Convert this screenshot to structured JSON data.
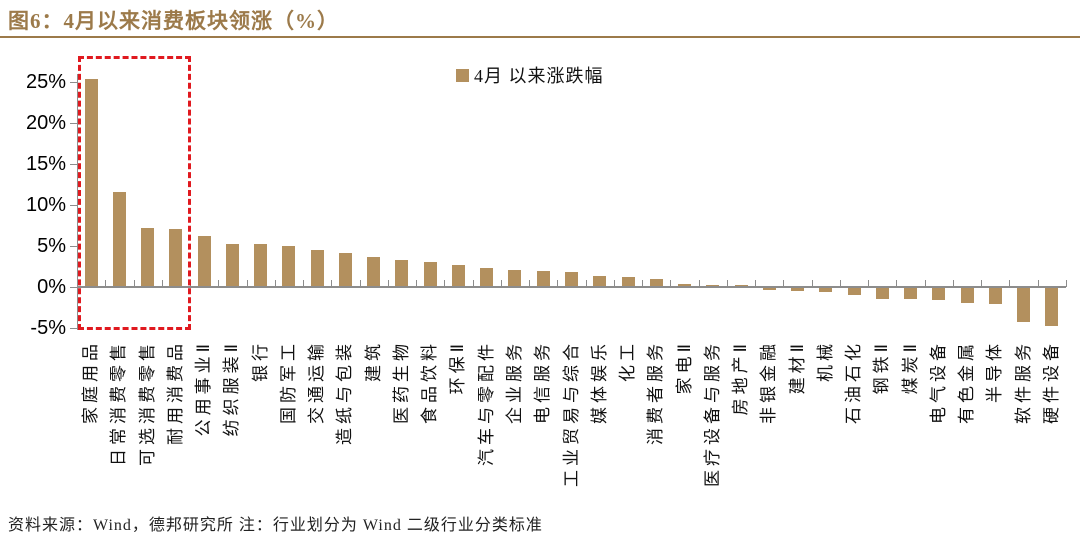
{
  "title": "图6：4月以来消费板块领涨（%）",
  "legend": "4月 以来涨跌幅",
  "footer": "资料来源：Wind，德邦研究所  注：行业划分为 Wind 二级行业分类标准",
  "colors": {
    "accent_brown": "#9c7a4a",
    "bar_fill": "#b3905e",
    "highlight_red": "#e0191f",
    "axis_gray": "#8c8c8c"
  },
  "chart_data": {
    "type": "bar",
    "title": "图6：4月以来消费板块领涨（%）",
    "legend_entries": [
      "4月 以来涨跌幅"
    ],
    "legend_position": "top-center",
    "grid": false,
    "ylabel": "",
    "xlabel": "",
    "ytick_suffix": "%",
    "yticks": [
      25,
      20,
      15,
      10,
      5,
      0,
      -5
    ],
    "ylim": [
      -5.6,
      26
    ],
    "highlight_box_categories": [
      "家庭用品",
      "日常消费零售",
      "可选消费零售",
      "耐用消费品"
    ],
    "categories": [
      "家庭用品",
      "日常消费零售",
      "可选消费零售",
      "耐用消费品",
      "公用事业Ⅱ",
      "纺织服装Ⅱ",
      "银行",
      "国防军工",
      "交通运输",
      "造纸与包装",
      "建筑",
      "医药生物",
      "食品饮料",
      "环保Ⅱ",
      "汽车与零配件",
      "企业服务",
      "电信服务",
      "工业贸易与综合",
      "媒体娱乐",
      "化工",
      "消费者服务",
      "家电Ⅱ",
      "医疗设备与服务",
      "房地产Ⅱ",
      "非银金融",
      "建材Ⅱ",
      "机械",
      "石油石化",
      "钢铁Ⅱ",
      "煤炭Ⅱ",
      "电气设备",
      "有色金属",
      "半导体",
      "软件服务",
      "硬件设备"
    ],
    "series": [
      {
        "name": "4月 以来涨跌幅",
        "values": [
          25.4,
          11.6,
          7.2,
          7.1,
          6.2,
          5.3,
          5.2,
          5.0,
          4.5,
          4.2,
          3.7,
          3.3,
          3.0,
          2.7,
          2.3,
          2.1,
          2.0,
          1.8,
          1.3,
          1.2,
          1.0,
          0.4,
          0.2,
          0.2,
          -0.3,
          -0.4,
          -0.5,
          -0.8,
          -1.3,
          -1.3,
          -1.5,
          -1.8,
          -2.0,
          -4.2,
          -4.7
        ]
      }
    ]
  }
}
